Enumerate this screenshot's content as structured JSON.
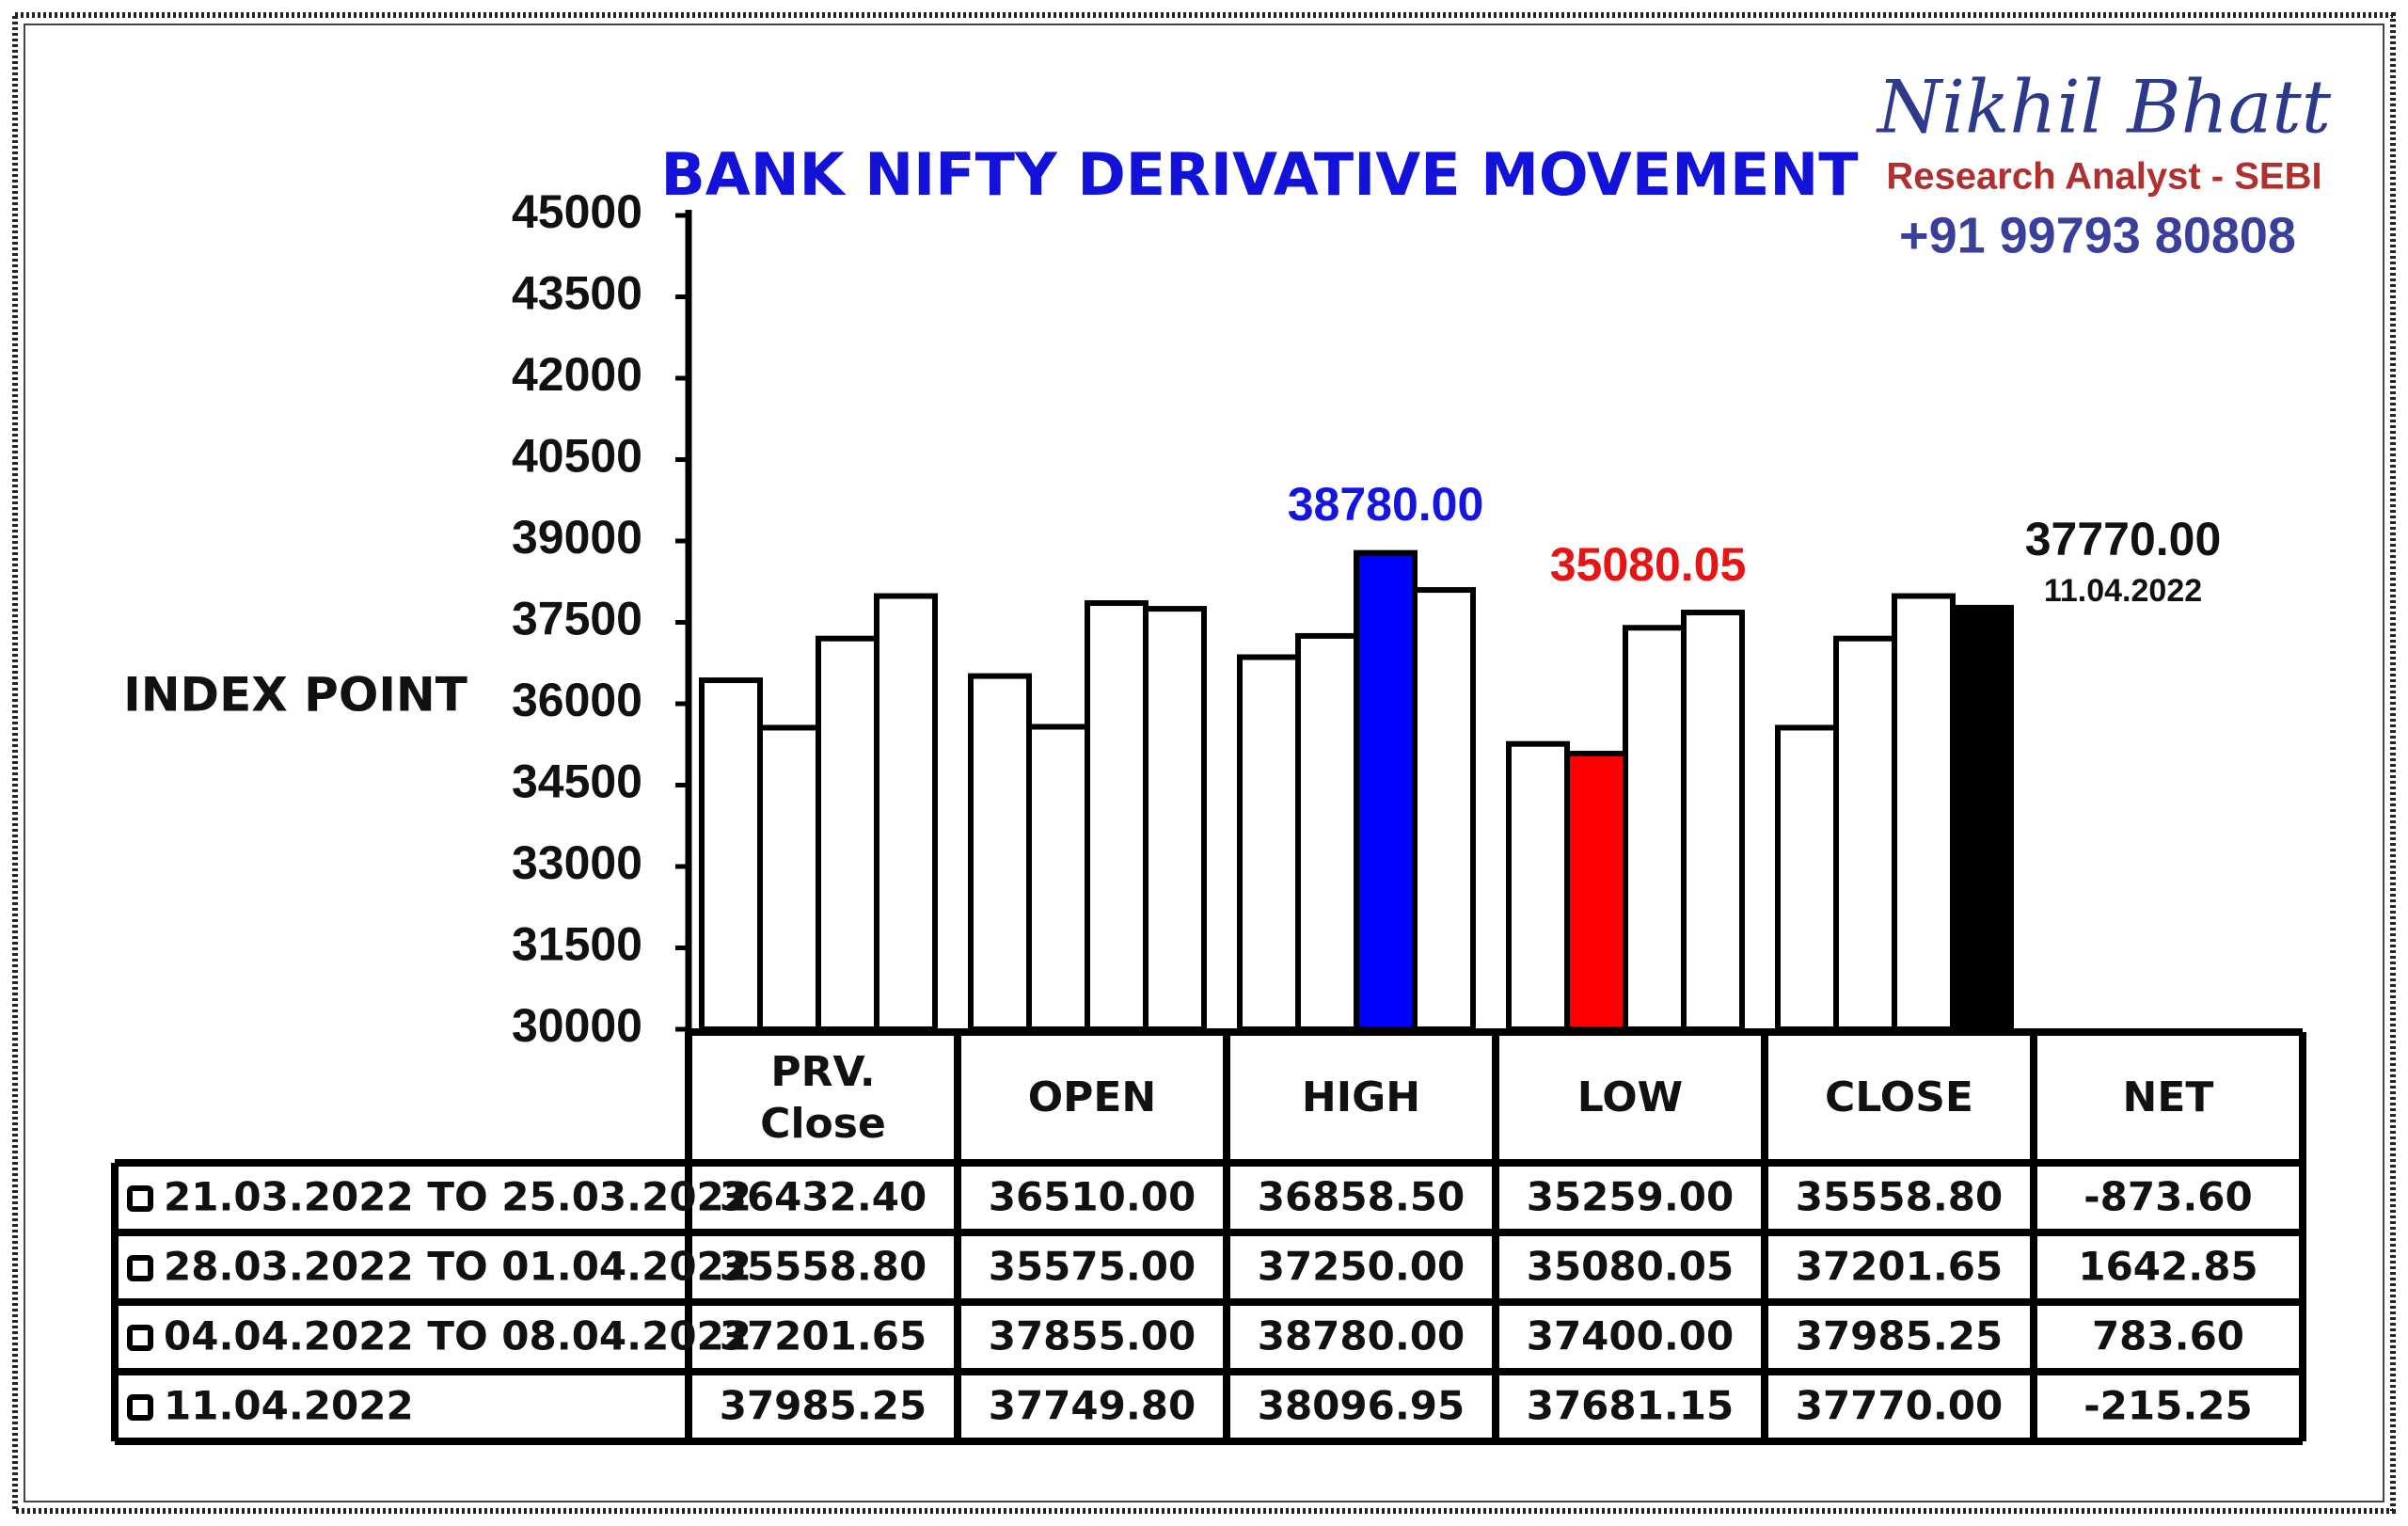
{
  "chart_data": {
    "type": "bar",
    "title": "BANK NIFTY DERIVATIVE MOVEMENT",
    "ylabel": "INDEX POINT",
    "brand": {
      "name": "Nikhil Bhatt",
      "role": "Research Analyst - SEBI",
      "phone": "+91 99793 80808"
    },
    "categories": [
      "PRV. Close",
      "OPEN",
      "HIGH",
      "LOW",
      "CLOSE"
    ],
    "net_header": "NET",
    "ylim": [
      30000,
      45000
    ],
    "yticks": [
      30000,
      31500,
      33000,
      34500,
      36000,
      37500,
      39000,
      40500,
      42000,
      43500,
      45000
    ],
    "series": [
      {
        "name": "21.03.2022 TO 25.03.2022",
        "color": "#ffffff",
        "values": [
          36432.4,
          36510,
          36858.5,
          35259,
          35558.8
        ],
        "value_labels": [
          "36432.40",
          "36510.00",
          "36858.50",
          "35259.00",
          "35558.80"
        ],
        "net": -873.6,
        "net_label": "-873.60"
      },
      {
        "name": "28.03.2022 TO 01.04.2022",
        "color": "#ffffff",
        "values": [
          35558.8,
          35575,
          37250,
          35080.05,
          37201.65
        ],
        "value_labels": [
          "35558.80",
          "35575.00",
          "37250.00",
          "35080.05",
          "37201.65"
        ],
        "net": 1642.85,
        "net_label": "1642.85"
      },
      {
        "name": "04.04.2022 TO 08.04.2022",
        "color": "#ffffff",
        "values": [
          37201.65,
          37855,
          38780,
          37400,
          37985.25
        ],
        "value_labels": [
          "37201.65",
          "37855.00",
          "38780.00",
          "37400.00",
          "37985.25"
        ],
        "net": 783.6,
        "net_label": "783.60"
      },
      {
        "name": "11.04.2022",
        "color": "#ffffff",
        "values": [
          37985.25,
          37749.8,
          38096.95,
          37681.15,
          37770
        ],
        "value_labels": [
          "37985.25",
          "37749.80",
          "38096.95",
          "37681.15",
          "37770.00"
        ],
        "net": -215.25,
        "net_label": "-215.25"
      }
    ],
    "highlights": [
      {
        "series": 2,
        "category": 2,
        "color": "#0000ff",
        "label_color": "#1515e0"
      },
      {
        "series": 1,
        "category": 3,
        "color": "#ff0000",
        "label_color": "#e61515"
      },
      {
        "series": 3,
        "category": 4,
        "color": "#000000",
        "label_color": "#111111"
      }
    ]
  }
}
